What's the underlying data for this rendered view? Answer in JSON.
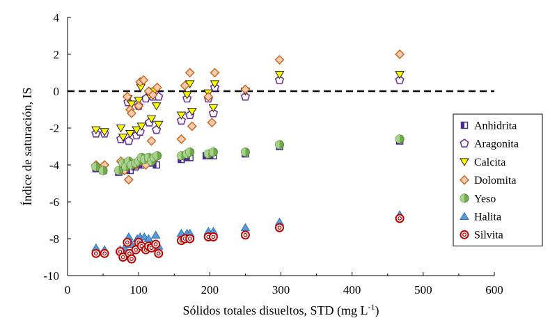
{
  "chart_data": {
    "type": "scatter",
    "title": "",
    "xlabel": "Sólidos totales disueltos, STD (mg L",
    "xlabel_sup": "-1",
    "xlabel_end": ")",
    "ylabel": "Índice de saturación, IS",
    "xlim": [
      0,
      600
    ],
    "ylim": [
      -10,
      4
    ],
    "xticks": [
      0,
      100,
      200,
      300,
      400,
      500,
      600
    ],
    "yticks": [
      -10,
      -8,
      -6,
      -4,
      -2,
      0,
      2,
      4
    ],
    "grid": false,
    "reference_line": {
      "y": 0,
      "style": "dashed"
    },
    "legend_position": "right",
    "series": [
      {
        "name": "Anhidrita",
        "marker": "square-half",
        "color": "#4B2C8F",
        "points": [
          [
            40,
            -4.2
          ],
          [
            50,
            -4.3
          ],
          [
            72,
            -4.4
          ],
          [
            80,
            -4.2
          ],
          [
            85,
            -4.1
          ],
          [
            88,
            -4.3
          ],
          [
            95,
            -4.1
          ],
          [
            100,
            -4.0
          ],
          [
            105,
            -4.0
          ],
          [
            110,
            -3.9
          ],
          [
            118,
            -3.9
          ],
          [
            125,
            -4.0
          ],
          [
            160,
            -3.7
          ],
          [
            168,
            -3.6
          ],
          [
            172,
            -3.6
          ],
          [
            195,
            -3.5
          ],
          [
            205,
            -3.5
          ],
          [
            250,
            -3.4
          ],
          [
            298,
            -3.0
          ],
          [
            467,
            -2.7
          ]
        ]
      },
      {
        "name": "Aragonita",
        "marker": "pentagon",
        "color": "#7030A0",
        "points": [
          [
            40,
            -2.3
          ],
          [
            52,
            -2.3
          ],
          [
            75,
            -2.6
          ],
          [
            85,
            -0.6
          ],
          [
            86,
            -2.7
          ],
          [
            97,
            -2.4
          ],
          [
            100,
            -0.8
          ],
          [
            102,
            -2.2
          ],
          [
            110,
            -0.4
          ],
          [
            115,
            -1.7
          ],
          [
            120,
            -0.3
          ],
          [
            125,
            -2.1
          ],
          [
            128,
            -0.3
          ],
          [
            160,
            -1.6
          ],
          [
            168,
            -0.4
          ],
          [
            172,
            -1.3
          ],
          [
            198,
            -0.4
          ],
          [
            205,
            -1.2
          ],
          [
            207,
            0.2
          ],
          [
            250,
            -0.3
          ],
          [
            298,
            0.6
          ],
          [
            467,
            0.6
          ]
        ]
      },
      {
        "name": "Calcita",
        "marker": "triangle-down",
        "color": "#222222",
        "fill": "#FFFF00",
        "points": [
          [
            40,
            -2.1
          ],
          [
            52,
            -2.2
          ],
          [
            75,
            -2.0
          ],
          [
            78,
            -2.5
          ],
          [
            85,
            -0.4
          ],
          [
            88,
            -2.3
          ],
          [
            90,
            -0.7
          ],
          [
            97,
            -2.1
          ],
          [
            100,
            -0.5
          ],
          [
            103,
            0.2
          ],
          [
            104,
            -1.9
          ],
          [
            115,
            -0.2
          ],
          [
            118,
            -1.5
          ],
          [
            122,
            0.0
          ],
          [
            125,
            -0.8
          ],
          [
            128,
            -1.8
          ],
          [
            160,
            -1.3
          ],
          [
            168,
            -0.2
          ],
          [
            172,
            0.4
          ],
          [
            175,
            -1.1
          ],
          [
            198,
            -0.1
          ],
          [
            205,
            -0.9
          ],
          [
            207,
            0.4
          ],
          [
            250,
            0.0
          ],
          [
            298,
            0.9
          ],
          [
            467,
            0.9
          ]
        ]
      },
      {
        "name": "Dolomita",
        "marker": "diamond",
        "color": "#C55A11",
        "fill": "#F8CBAD",
        "points": [
          [
            40,
            -4.0
          ],
          [
            52,
            -4.0
          ],
          [
            75,
            -3.8
          ],
          [
            80,
            -4.3
          ],
          [
            84,
            -0.3
          ],
          [
            86,
            -4.8
          ],
          [
            88,
            -1.0
          ],
          [
            90,
            -1.2
          ],
          [
            96,
            -4.0
          ],
          [
            100,
            -0.8
          ],
          [
            102,
            0.5
          ],
          [
            105,
            -3.7
          ],
          [
            107,
            0.6
          ],
          [
            110,
            -4.0
          ],
          [
            114,
            0.0
          ],
          [
            118,
            -2.7
          ],
          [
            120,
            -0.2
          ],
          [
            126,
            0.2
          ],
          [
            160,
            -2.6
          ],
          [
            165,
            0.3
          ],
          [
            172,
            1.0
          ],
          [
            175,
            -1.9
          ],
          [
            198,
            -0.3
          ],
          [
            203,
            -1.7
          ],
          [
            207,
            1.0
          ],
          [
            250,
            0.1
          ],
          [
            298,
            1.7
          ],
          [
            467,
            2.0
          ]
        ]
      },
      {
        "name": "Yeso",
        "marker": "circle-half",
        "color": "#548235",
        "fill": "#70AD47",
        "points": [
          [
            40,
            -4.1
          ],
          [
            50,
            -4.3
          ],
          [
            72,
            -4.3
          ],
          [
            78,
            -3.9
          ],
          [
            82,
            -4.1
          ],
          [
            86,
            -3.8
          ],
          [
            90,
            -4.0
          ],
          [
            96,
            -3.9
          ],
          [
            100,
            -3.8
          ],
          [
            104,
            -3.6
          ],
          [
            108,
            -3.7
          ],
          [
            114,
            -3.6
          ],
          [
            118,
            -3.8
          ],
          [
            122,
            -3.6
          ],
          [
            126,
            -3.5
          ],
          [
            160,
            -3.5
          ],
          [
            168,
            -3.4
          ],
          [
            172,
            -3.3
          ],
          [
            198,
            -3.4
          ],
          [
            205,
            -3.3
          ],
          [
            250,
            -3.3
          ],
          [
            298,
            -2.9
          ],
          [
            467,
            -2.6
          ]
        ]
      },
      {
        "name": "Halita",
        "marker": "triangle-up",
        "color": "#2E75B6",
        "fill": "#5B9BD5",
        "points": [
          [
            40,
            -8.5
          ],
          [
            52,
            -8.6
          ],
          [
            74,
            -8.6
          ],
          [
            80,
            -8.5
          ],
          [
            86,
            -7.9
          ],
          [
            90,
            -8.3
          ],
          [
            98,
            -8.0
          ],
          [
            102,
            -7.9
          ],
          [
            108,
            -7.9
          ],
          [
            114,
            -8.0
          ],
          [
            118,
            -8.3
          ],
          [
            124,
            -7.8
          ],
          [
            128,
            -8.4
          ],
          [
            160,
            -7.7
          ],
          [
            168,
            -7.7
          ],
          [
            172,
            -7.7
          ],
          [
            198,
            -7.6
          ],
          [
            205,
            -7.6
          ],
          [
            250,
            -7.4
          ],
          [
            298,
            -7.1
          ],
          [
            467,
            -6.7
          ]
        ]
      },
      {
        "name": "Silvita",
        "marker": "circle-ring",
        "color": "#C00000",
        "fill": "#F4B6B6",
        "points": [
          [
            40,
            -8.8
          ],
          [
            52,
            -8.8
          ],
          [
            74,
            -8.7
          ],
          [
            78,
            -9.0
          ],
          [
            84,
            -8.2
          ],
          [
            87,
            -8.8
          ],
          [
            90,
            -9.1
          ],
          [
            96,
            -8.6
          ],
          [
            100,
            -8.2
          ],
          [
            104,
            -8.4
          ],
          [
            110,
            -8.6
          ],
          [
            114,
            -8.4
          ],
          [
            118,
            -8.5
          ],
          [
            124,
            -8.3
          ],
          [
            128,
            -8.8
          ],
          [
            160,
            -8.1
          ],
          [
            165,
            -8.0
          ],
          [
            172,
            -8.0
          ],
          [
            198,
            -7.9
          ],
          [
            205,
            -7.9
          ],
          [
            250,
            -7.8
          ],
          [
            298,
            -7.4
          ],
          [
            467,
            -6.9
          ]
        ]
      }
    ]
  }
}
